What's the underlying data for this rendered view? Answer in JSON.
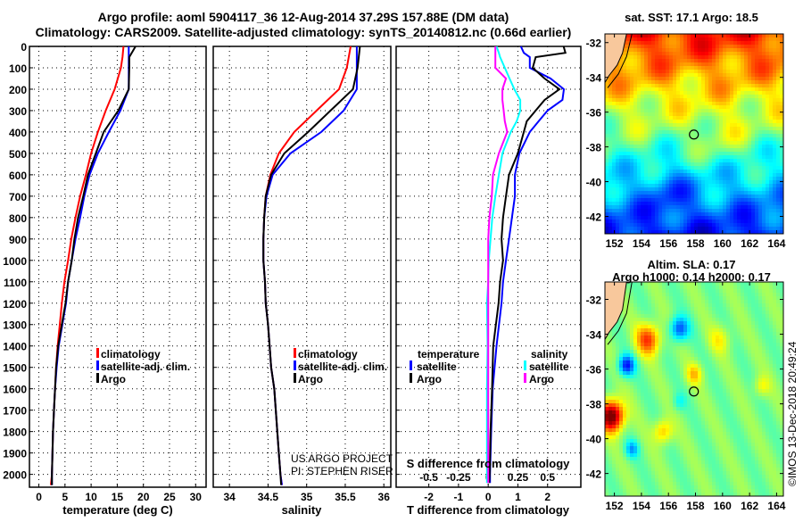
{
  "title": {
    "line1": "Argo profile: aoml 5904117_36 12-Aug-2014 37.29S 157.88E (DM data)",
    "line2": "Climatology: CARS2009. Satellite-adjusted climatology: synTS_20140812.nc (0.66d earlier)"
  },
  "credit": {
    "line1": "US ARGO PROJECT",
    "line2": "PI: STEPHEN RISER"
  },
  "timestamp": "©IMOS 13-Dec-2018 20:49:24",
  "colors": {
    "climatology": "#ff0000",
    "satellite": "#0000ff",
    "argo": "#000000",
    "sal_satellite": "#00ffff",
    "sal_argo": "#ff00ff"
  },
  "chart_data": [
    {
      "type": "line",
      "xlabel": "temperature (deg C)",
      "ylabel": "",
      "xlim": [
        -1.8,
        32
      ],
      "ylim": [
        2060,
        0
      ],
      "xticks": [
        0,
        5,
        10,
        15,
        20,
        25,
        30
      ],
      "yticks": [
        0,
        100,
        200,
        300,
        400,
        500,
        600,
        700,
        800,
        900,
        1000,
        1100,
        1200,
        1300,
        1400,
        1500,
        1600,
        1700,
        1800,
        1900,
        2000
      ],
      "grid": true,
      "legend": [
        "climatology",
        "satellite-adj. clim.",
        "Argo"
      ],
      "depth": [
        0,
        50,
        100,
        200,
        300,
        400,
        500,
        600,
        700,
        800,
        900,
        1000,
        1100,
        1200,
        1300,
        1400,
        1500,
        1600,
        1700,
        1800,
        1900,
        2000,
        2050
      ],
      "series": [
        {
          "name": "climatology",
          "values": [
            16.2,
            16.0,
            15.7,
            14.5,
            12.8,
            11.3,
            10.0,
            9.0,
            7.9,
            7.0,
            6.2,
            5.6,
            4.9,
            4.4,
            4.0,
            3.6,
            3.3,
            3.1,
            2.9,
            2.7,
            2.6,
            2.5,
            2.3
          ]
        },
        {
          "name": "satellite-adj. clim.",
          "values": [
            17.2,
            17.2,
            17.2,
            17.2,
            15.6,
            13.4,
            11.3,
            9.7,
            8.7,
            7.9,
            7.0,
            6.3,
            5.6,
            5.2,
            4.5,
            3.8,
            3.4,
            3.1,
            2.9,
            2.7,
            2.6,
            2.5,
            2.5
          ]
        },
        {
          "name": "Argo",
          "values": [
            18.5,
            17.3,
            17.3,
            17.2,
            15.2,
            12.4,
            10.9,
            9.4,
            8.5,
            7.5,
            6.8,
            6.3,
            5.6,
            5.1,
            4.4,
            3.7,
            3.3,
            3.1,
            2.9,
            2.7,
            2.6,
            2.5,
            2.5
          ]
        }
      ]
    },
    {
      "type": "line",
      "xlabel": "salinity",
      "xlim": [
        33.79,
        36.09
      ],
      "ylim": [
        2060,
        0
      ],
      "xticks": [
        34,
        34.5,
        35,
        35.5,
        36
      ],
      "grid": true,
      "legend": [
        "climatology",
        "satellite-adj. clim.",
        "Argo"
      ],
      "depth": [
        0,
        100,
        200,
        300,
        400,
        500,
        600,
        700,
        800,
        900,
        1000,
        1100,
        1200,
        1300,
        1400,
        1500,
        1600,
        1700,
        1800,
        1900,
        2000,
        2050
      ],
      "series": [
        {
          "name": "climatology",
          "values": [
            35.57,
            35.52,
            35.42,
            35.13,
            34.84,
            34.64,
            34.53,
            34.47,
            34.45,
            34.44,
            34.44,
            34.46,
            34.47,
            34.5,
            34.52,
            34.54,
            34.58,
            34.6,
            34.62,
            34.64,
            34.66,
            34.68
          ]
        },
        {
          "name": "satellite-adj. clim.",
          "values": [
            35.65,
            35.65,
            35.65,
            35.48,
            35.19,
            34.79,
            34.56,
            34.48,
            34.45,
            34.44,
            34.44,
            34.46,
            34.47,
            34.5,
            34.52,
            34.54,
            34.58,
            34.6,
            34.62,
            34.64,
            34.66,
            34.68
          ]
        },
        {
          "name": "Argo",
          "values": [
            35.69,
            35.66,
            35.6,
            35.31,
            35.02,
            34.71,
            34.54,
            34.47,
            34.45,
            34.44,
            34.44,
            34.46,
            34.47,
            34.5,
            34.52,
            34.54,
            34.58,
            34.6,
            34.62,
            34.64,
            34.66,
            34.67
          ]
        }
      ]
    },
    {
      "type": "line",
      "xlabel": "T difference from climatology",
      "x2label": "S difference from climatology",
      "xlim": [
        -3.1,
        3.12
      ],
      "x2lim": [
        -0.775,
        0.78
      ],
      "ylim": [
        2060,
        0
      ],
      "xticks": [
        -2,
        -1,
        0,
        1,
        2
      ],
      "x2ticks": [
        -0.5,
        -0.25,
        0,
        0.25,
        0.5
      ],
      "x2ticklabels": [
        "-0.5",
        "-0.25",
        "0",
        "0.25",
        "0.5"
      ],
      "grid": true,
      "legend_titles": [
        "temperature",
        "salinity"
      ],
      "legend": [
        "satellite",
        "Argo",
        "satellite",
        "Argo"
      ],
      "depth": [
        0,
        30,
        50,
        100,
        150,
        200,
        250,
        300,
        350,
        400,
        500,
        600,
        700,
        800,
        900,
        1000,
        1100,
        1200,
        1400,
        1600,
        1800,
        2000,
        2040
      ],
      "series": [
        {
          "name": "T satellite",
          "axis": "T",
          "values": [
            1.1,
            1.2,
            1.4,
            1.4,
            2.1,
            2.55,
            2.5,
            2.0,
            1.7,
            1.4,
            1.05,
            0.9,
            0.9,
            0.8,
            0.7,
            0.6,
            0.5,
            0.45,
            0.28,
            0.15,
            0.1,
            0.06,
            0.06
          ]
        },
        {
          "name": "T Argo",
          "axis": "T",
          "values": [
            2.54,
            2.6,
            1.6,
            1.5,
            1.9,
            2.4,
            1.9,
            1.6,
            1.3,
            1.2,
            1.0,
            0.7,
            0.6,
            0.5,
            0.45,
            0.5,
            0.4,
            0.35,
            0.17,
            0.13,
            0.08,
            0.05,
            0.03
          ]
        },
        {
          "name": "S satellite",
          "axis": "S",
          "values": [
            0.07,
            0.09,
            0.1,
            0.14,
            0.18,
            0.22,
            0.27,
            0.27,
            0.24,
            0.19,
            0.12,
            0.09,
            0.06,
            0.035,
            0.02,
            0.005,
            0.0,
            -0.01,
            -0.005,
            -0.01,
            -0.01,
            -0.01,
            -0.01
          ]
        },
        {
          "name": "S Argo",
          "axis": "S",
          "values": [
            0.06,
            0.06,
            0.06,
            0.06,
            0.15,
            0.12,
            0.12,
            0.13,
            0.14,
            0.16,
            0.09,
            0.04,
            0.03,
            0.01,
            0.0,
            0.0,
            0.0,
            0.0,
            0.0,
            0.0,
            0.0,
            0.0,
            0.0
          ]
        }
      ]
    },
    {
      "type": "heatmap",
      "title": "sat. SST: 17.1 Argo: 18.5",
      "field": "SST",
      "lon_lim": [
        151.3,
        164.5
      ],
      "lat_lim": [
        -43.0,
        -31.5
      ],
      "xticks": [
        152,
        154,
        156,
        158,
        160,
        162,
        164
      ],
      "yticks": [
        -32,
        -34,
        -36,
        -38,
        -40,
        -42
      ],
      "argo_position": {
        "lon": 157.88,
        "lat": -37.29
      }
    },
    {
      "type": "heatmap",
      "title": "Altim. SLA: 0.17",
      "subtitle": "Argo h1000: 0.14 h2000: 0.17",
      "field": "SLA",
      "lon_lim": [
        151.3,
        164.5
      ],
      "lat_lim": [
        -43.3,
        -31.0
      ],
      "xticks": [
        152,
        154,
        156,
        158,
        160,
        162,
        164
      ],
      "yticks": [
        -32,
        -34,
        -36,
        -38,
        -40,
        -42
      ],
      "argo_position": {
        "lon": 157.88,
        "lat": -37.29
      }
    }
  ]
}
